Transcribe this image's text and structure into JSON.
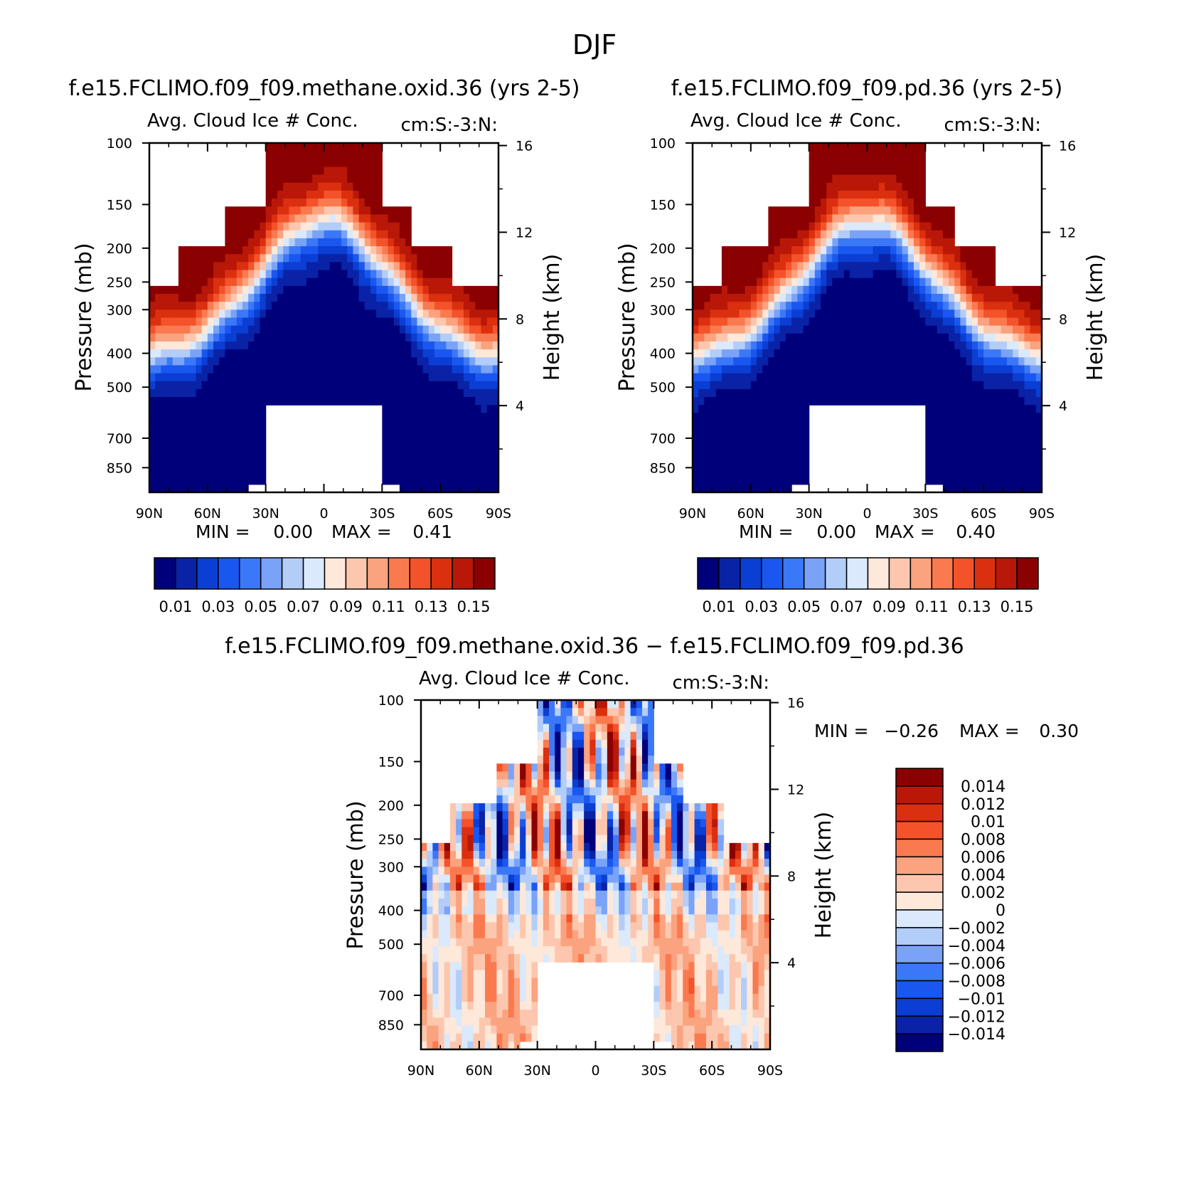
{
  "page_title": "DJF",
  "colors": {
    "seq_palette": [
      "#00007a",
      "#0a23a6",
      "#0b3ed2",
      "#1a56f0",
      "#3b78f7",
      "#7aa3f8",
      "#b3cdf9",
      "#dae9fb",
      "#fde8da",
      "#fcc7ae",
      "#fba27f",
      "#fa7a50",
      "#f3522a",
      "#db300f",
      "#b91808",
      "#8b0000"
    ],
    "diff_palette": [
      "#00007a",
      "#0a23a6",
      "#0b3ed2",
      "#1a56f0",
      "#3b78f7",
      "#7aa3f8",
      "#b3cdf9",
      "#dae9fb",
      "#fde8da",
      "#fcc7ae",
      "#fba27f",
      "#fa7a50",
      "#f3522a",
      "#db300f",
      "#b91808",
      "#8b0000"
    ],
    "missing": "#ffffff"
  },
  "chart_data": [
    {
      "type": "heatmap",
      "id": "panel1",
      "title": "f.e15.FCLIMO.f09_f09.methane.oxid.36 (yrs 2-5)",
      "subtitle_left": "Avg. Cloud Ice # Conc.",
      "subtitle_right": "cm:S:-3:N:",
      "xlabel": "",
      "ylabel": "Pressure (mb)",
      "y2label": "Height (km)",
      "x_ticks": [
        "90N",
        "60N",
        "30N",
        "0",
        "30S",
        "60S",
        "90S"
      ],
      "x_tick_values": [
        90,
        60,
        30,
        0,
        -30,
        -60,
        -90
      ],
      "y_ticks": [
        "100",
        "150",
        "200",
        "250",
        "300",
        "400",
        "500",
        "700",
        "850"
      ],
      "y_tick_values": [
        100,
        150,
        200,
        250,
        300,
        400,
        500,
        700,
        850
      ],
      "y2_ticks": [
        "16",
        "12",
        "8",
        "4"
      ],
      "y2_tick_values": [
        16,
        12,
        8,
        4
      ],
      "xlim": [
        90,
        -90
      ],
      "ylim": [
        100,
        1000
      ],
      "min_label": "MIN =",
      "min_value": "0.00",
      "max_label": "MAX =",
      "max_value": "0.41",
      "colorbar_labels": [
        "0.01",
        "0.03",
        "0.05",
        "0.07",
        "0.09",
        "0.11",
        "0.13",
        "0.15"
      ],
      "levels": [
        0.01,
        0.02,
        0.03,
        0.04,
        0.05,
        0.06,
        0.07,
        0.08,
        0.09,
        0.1,
        0.11,
        0.12,
        0.13,
        0.14,
        0.15
      ]
    },
    {
      "type": "heatmap",
      "id": "panel2",
      "title": "f.e15.FCLIMO.f09_f09.pd.36 (yrs 2-5)",
      "subtitle_left": "Avg. Cloud Ice # Conc.",
      "subtitle_right": "cm:S:-3:N:",
      "xlabel": "",
      "ylabel": "Pressure (mb)",
      "y2label": "Height (km)",
      "x_ticks": [
        "90N",
        "60N",
        "30N",
        "0",
        "30S",
        "60S",
        "90S"
      ],
      "x_tick_values": [
        90,
        60,
        30,
        0,
        -30,
        -60,
        -90
      ],
      "y_ticks": [
        "100",
        "150",
        "200",
        "250",
        "300",
        "400",
        "500",
        "700",
        "850"
      ],
      "y_tick_values": [
        100,
        150,
        200,
        250,
        300,
        400,
        500,
        700,
        850
      ],
      "y2_ticks": [
        "16",
        "12",
        "8",
        "4"
      ],
      "y2_tick_values": [
        16,
        12,
        8,
        4
      ],
      "xlim": [
        90,
        -90
      ],
      "ylim": [
        100,
        1000
      ],
      "min_label": "MIN =",
      "min_value": "0.00",
      "max_label": "MAX =",
      "max_value": "0.40",
      "colorbar_labels": [
        "0.01",
        "0.03",
        "0.05",
        "0.07",
        "0.09",
        "0.11",
        "0.13",
        "0.15"
      ],
      "levels": [
        0.01,
        0.02,
        0.03,
        0.04,
        0.05,
        0.06,
        0.07,
        0.08,
        0.09,
        0.1,
        0.11,
        0.12,
        0.13,
        0.14,
        0.15
      ]
    },
    {
      "type": "heatmap",
      "id": "panel3",
      "title": "f.e15.FCLIMO.f09_f09.methane.oxid.36 − f.e15.FCLIMO.f09_f09.pd.36",
      "subtitle_left": "Avg. Cloud Ice # Conc.",
      "subtitle_right": "cm:S:-3:N:",
      "xlabel": "",
      "ylabel": "Pressure (mb)",
      "y2label": "Height (km)",
      "x_ticks": [
        "90N",
        "60N",
        "30N",
        "0",
        "30S",
        "60S",
        "90S"
      ],
      "x_tick_values": [
        90,
        60,
        30,
        0,
        -30,
        -60,
        -90
      ],
      "y_ticks": [
        "100",
        "150",
        "200",
        "250",
        "300",
        "400",
        "500",
        "700",
        "850"
      ],
      "y_tick_values": [
        100,
        150,
        200,
        250,
        300,
        400,
        500,
        700,
        850
      ],
      "y2_ticks": [
        "16",
        "12",
        "8",
        "4"
      ],
      "y2_tick_values": [
        16,
        12,
        8,
        4
      ],
      "xlim": [
        90,
        -90
      ],
      "ylim": [
        100,
        1000
      ],
      "min_label": "MIN =",
      "min_value": "−0.26",
      "max_label": "MAX =",
      "max_value": "0.30",
      "colorbar_labels": [
        "0.014",
        "0.012",
        "0.01",
        "0.008",
        "0.006",
        "0.004",
        "0.002",
        "0",
        "−0.002",
        "−0.004",
        "−0.006",
        "−0.008",
        "−0.01",
        "−0.012",
        "−0.014"
      ],
      "levels": [
        -0.014,
        -0.012,
        -0.01,
        -0.008,
        -0.006,
        -0.004,
        -0.002,
        0,
        0.002,
        0.004,
        0.006,
        0.008,
        0.01,
        0.012,
        0.014
      ]
    }
  ]
}
